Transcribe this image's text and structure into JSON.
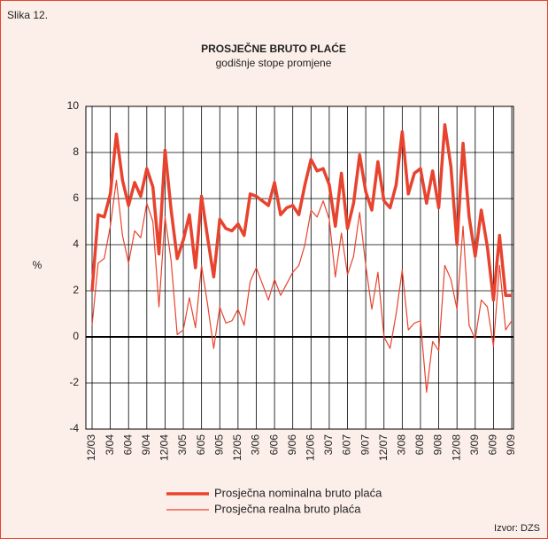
{
  "chart_data": {
    "type": "line",
    "figure_label": "Slika 12.",
    "title": "PROSJEČNE BRUTO PLAĆE",
    "subtitle": "godišnje stope promjene",
    "y_label": "%",
    "source": "Izvor: DZS",
    "categories": [
      "12/03",
      null,
      null,
      "3/04",
      null,
      null,
      "6/04",
      null,
      null,
      "9/04",
      null,
      null,
      "12/04",
      null,
      null,
      "3/05",
      null,
      null,
      "6/05",
      null,
      null,
      "9/05",
      null,
      null,
      "12/05",
      null,
      null,
      "3/06",
      null,
      null,
      "6/06",
      null,
      null,
      "9/06",
      null,
      null,
      "12/06",
      null,
      null,
      "3/07",
      null,
      null,
      "6/07",
      null,
      null,
      "9/07",
      null,
      null,
      "12/07",
      null,
      null,
      "3/08",
      null,
      null,
      "6/08",
      null,
      null,
      "9/08",
      null,
      null,
      "12/08",
      null,
      null,
      "3/09",
      null,
      null,
      "6/09",
      null,
      null,
      "9/09"
    ],
    "series": [
      {
        "name": "Prosječna nominalna bruto plaća",
        "color": "#e8432e",
        "line_width": 3.5,
        "values": [
          2.0,
          5.3,
          5.2,
          6.2,
          8.8,
          6.8,
          5.7,
          6.7,
          6.1,
          7.3,
          6.5,
          3.6,
          8.1,
          5.5,
          3.4,
          4.2,
          5.3,
          3.0,
          6.1,
          4.3,
          2.6,
          5.1,
          4.7,
          4.6,
          4.9,
          4.4,
          6.2,
          6.1,
          5.9,
          5.7,
          6.7,
          5.3,
          5.6,
          5.7,
          5.3,
          6.6,
          7.7,
          7.2,
          7.3,
          6.6,
          4.8,
          7.1,
          4.7,
          5.8,
          7.9,
          6.3,
          5.5,
          7.6,
          5.9,
          5.6,
          6.6,
          8.9,
          6.2,
          7.1,
          7.3,
          5.8,
          7.2,
          5.6,
          9.2,
          7.4,
          4.0,
          8.4,
          5.2,
          3.5,
          5.5,
          3.9,
          1.6,
          4.4,
          1.8,
          1.8
        ]
      },
      {
        "name": "Prosječna realna bruto plaća",
        "color": "#e8432e",
        "line_width": 1.2,
        "values": [
          0.5,
          3.2,
          3.4,
          4.8,
          6.8,
          4.4,
          3.2,
          4.6,
          4.3,
          5.8,
          5.0,
          1.3,
          5.2,
          3.3,
          0.1,
          0.3,
          1.7,
          0.4,
          3.1,
          1.4,
          -0.5,
          1.3,
          0.6,
          0.7,
          1.2,
          0.5,
          2.4,
          3.0,
          2.3,
          1.6,
          2.5,
          1.8,
          2.3,
          2.8,
          3.1,
          4.0,
          5.5,
          5.2,
          5.9,
          5.1,
          2.6,
          4.5,
          2.7,
          3.5,
          5.4,
          3.1,
          1.2,
          2.8,
          0.0,
          -0.5,
          1.0,
          2.9,
          0.3,
          0.6,
          0.7,
          -2.4,
          -0.2,
          -0.6,
          3.1,
          2.5,
          1.2,
          4.8,
          0.5,
          -0.1,
          1.6,
          1.3,
          -0.4,
          3.1,
          0.3,
          0.7
        ]
      }
    ],
    "ylim": [
      -4,
      10
    ],
    "yticks": [
      -4,
      -2,
      0,
      2,
      4,
      6,
      8,
      10
    ],
    "grid": true
  }
}
